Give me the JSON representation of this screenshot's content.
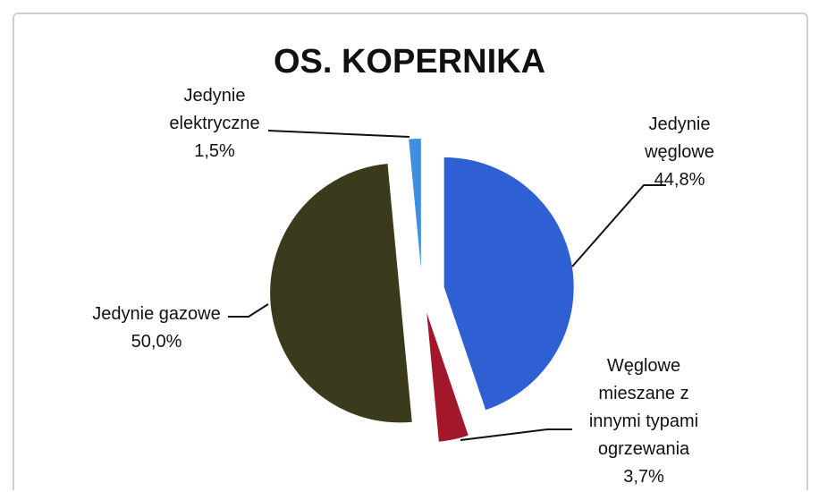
{
  "chart_data": {
    "type": "pie",
    "title": "OS. KOPERNIKA",
    "categories": [
      "Jedynie węglowe",
      "Węglowe mieszane z innymi typami ogrzewania",
      "Jedynie gazowe",
      "Jedynie elektryczne"
    ],
    "values": [
      44.8,
      3.7,
      50.0,
      1.5
    ],
    "value_labels": [
      "44,8%",
      "3,7%",
      "50,0%",
      "1,5%"
    ],
    "colors": [
      "#2e5fd3",
      "#a3172b",
      "#3b3a1c",
      "#3d8fe0"
    ]
  }
}
